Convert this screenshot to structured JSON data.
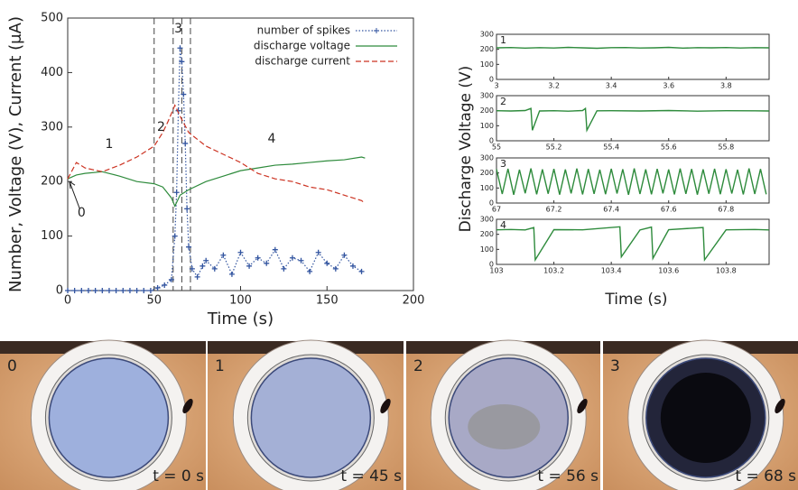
{
  "chart_data": [
    {
      "type": "line",
      "xlabel": "Time (s)",
      "ylabel": "Number, Voltage (V), Current (μA)",
      "xlim": [
        0,
        200
      ],
      "xticks": [
        0,
        50,
        100,
        150,
        200
      ],
      "ylim": [
        0,
        500
      ],
      "yticks": [
        0,
        100,
        200,
        300,
        400,
        500
      ],
      "vlines": [
        50,
        61,
        66,
        71
      ],
      "annotations": [
        {
          "text": "0",
          "x": 8,
          "y": 142
        },
        {
          "text": "1",
          "x": 24,
          "y": 268
        },
        {
          "text": "2",
          "x": 54,
          "y": 300
        },
        {
          "text": "3",
          "x": 64,
          "y": 480
        },
        {
          "text": "4",
          "x": 118,
          "y": 278
        }
      ],
      "series": [
        {
          "name": "number of spikes",
          "color": "#3355a0",
          "style": "cross",
          "x": [
            0,
            4,
            8,
            12,
            16,
            20,
            24,
            28,
            32,
            36,
            40,
            44,
            48,
            52,
            56,
            60,
            62,
            63,
            64,
            65,
            66,
            67,
            68,
            69,
            70,
            72,
            75,
            78,
            80,
            85,
            90,
            95,
            100,
            105,
            110,
            115,
            120,
            125,
            130,
            135,
            140,
            145,
            150,
            155,
            160,
            165,
            170
          ],
          "values": [
            0,
            0,
            0,
            0,
            0,
            0,
            0,
            0,
            0,
            0,
            0,
            0,
            0,
            5,
            10,
            20,
            100,
            180,
            330,
            445,
            420,
            360,
            270,
            150,
            80,
            40,
            25,
            45,
            55,
            40,
            65,
            30,
            70,
            45,
            60,
            50,
            75,
            40,
            60,
            55,
            35,
            70,
            50,
            40,
            65,
            45,
            35
          ]
        },
        {
          "name": "discharge voltage",
          "color": "#2e8b3c",
          "style": "solid",
          "x": [
            0,
            5,
            10,
            20,
            30,
            40,
            50,
            55,
            60,
            62,
            65,
            70,
            80,
            90,
            100,
            110,
            120,
            130,
            140,
            150,
            160,
            170,
            172
          ],
          "values": [
            205,
            212,
            215,
            218,
            210,
            200,
            196,
            190,
            170,
            155,
            175,
            185,
            200,
            210,
            220,
            225,
            230,
            232,
            235,
            238,
            240,
            245,
            243
          ]
        },
        {
          "name": "discharge current",
          "color": "#cc3322",
          "style": "dashed",
          "x": [
            0,
            5,
            10,
            20,
            30,
            40,
            50,
            55,
            58,
            62,
            65,
            70,
            80,
            90,
            100,
            110,
            120,
            130,
            140,
            150,
            160,
            170,
            172
          ],
          "values": [
            205,
            235,
            225,
            218,
            230,
            245,
            265,
            290,
            310,
            340,
            320,
            290,
            265,
            250,
            235,
            215,
            205,
            200,
            190,
            185,
            175,
            165,
            160
          ]
        }
      ]
    },
    {
      "type": "panels",
      "xlabel": "Time (s)",
      "ylabel": "Discharge Voltage (V)",
      "color": "#2e8b3c",
      "panels": [
        {
          "label": "1",
          "xlim": [
            3,
            3.95
          ],
          "xticks": [
            3,
            3.2,
            3.4,
            3.6,
            3.8
          ],
          "ylim": [
            0,
            300
          ],
          "yticks": [
            0,
            100,
            200,
            300
          ],
          "x": [
            3,
            3.05,
            3.1,
            3.15,
            3.2,
            3.25,
            3.3,
            3.35,
            3.4,
            3.45,
            3.5,
            3.55,
            3.6,
            3.65,
            3.7,
            3.75,
            3.8,
            3.85,
            3.9,
            3.95
          ],
          "values": [
            210,
            212,
            208,
            211,
            209,
            213,
            210,
            207,
            211,
            212,
            209,
            210,
            213,
            208,
            211,
            210,
            212,
            209,
            211,
            210
          ]
        },
        {
          "label": "2",
          "xlim": [
            55,
            55.95
          ],
          "xticks": [
            55,
            55.2,
            55.4,
            55.6,
            55.8
          ],
          "ylim": [
            0,
            300
          ],
          "yticks": [
            0,
            100,
            200,
            300
          ],
          "x": [
            55,
            55.05,
            55.1,
            55.12,
            55.125,
            55.15,
            55.2,
            55.25,
            55.3,
            55.31,
            55.315,
            55.35,
            55.4,
            55.5,
            55.6,
            55.7,
            55.8,
            55.9,
            55.95
          ],
          "values": [
            200,
            198,
            201,
            215,
            70,
            198,
            200,
            197,
            201,
            215,
            70,
            199,
            200,
            198,
            201,
            197,
            200,
            199,
            198
          ]
        },
        {
          "label": "3",
          "xlim": [
            67,
            67.95
          ],
          "xticks": [
            67,
            67.2,
            67.4,
            67.6,
            67.8
          ],
          "ylim": [
            0,
            300
          ],
          "yticks": [
            0,
            100,
            200,
            300
          ],
          "x": [
            67,
            67.02,
            67.04,
            67.06,
            67.08,
            67.1,
            67.12,
            67.14,
            67.16,
            67.18,
            67.2,
            67.22,
            67.24,
            67.26,
            67.28,
            67.3,
            67.32,
            67.34,
            67.36,
            67.38,
            67.4,
            67.42,
            67.44,
            67.46,
            67.48,
            67.5,
            67.52,
            67.54,
            67.56,
            67.58,
            67.6,
            67.62,
            67.64,
            67.66,
            67.68,
            67.7,
            67.72,
            67.74,
            67.76,
            67.78,
            67.8,
            67.82,
            67.84,
            67.86,
            67.88,
            67.9,
            67.92,
            67.94
          ],
          "values": [
            225,
            60,
            228,
            55,
            222,
            65,
            230,
            58,
            224,
            62,
            227,
            56,
            223,
            64,
            229,
            57,
            226,
            61,
            222,
            59,
            228,
            63,
            225,
            55,
            230,
            60,
            224,
            58,
            227,
            64,
            223,
            57,
            229,
            61,
            226,
            56,
            224,
            62,
            228,
            59,
            225,
            63,
            222,
            57,
            230,
            60,
            226,
            58
          ]
        },
        {
          "label": "4",
          "xlim": [
            103,
            103.95
          ],
          "xticks": [
            103,
            103.2,
            103.4,
            103.6,
            103.8
          ],
          "ylim": [
            0,
            300
          ],
          "yticks": [
            0,
            100,
            200,
            300
          ],
          "x": [
            103,
            103.05,
            103.1,
            103.13,
            103.135,
            103.2,
            103.3,
            103.43,
            103.435,
            103.5,
            103.54,
            103.545,
            103.6,
            103.72,
            103.725,
            103.8,
            103.9,
            103.95
          ],
          "values": [
            230,
            232,
            229,
            245,
            30,
            231,
            230,
            250,
            50,
            229,
            248,
            40,
            231,
            245,
            30,
            230,
            232,
            229
          ]
        }
      ]
    }
  ],
  "photos": [
    {
      "label": "0",
      "time": "t = 0 s"
    },
    {
      "label": "1",
      "time": "t = 45 s"
    },
    {
      "label": "2",
      "time": "t = 56 s"
    },
    {
      "label": "3",
      "time": "t = 68 s"
    }
  ]
}
